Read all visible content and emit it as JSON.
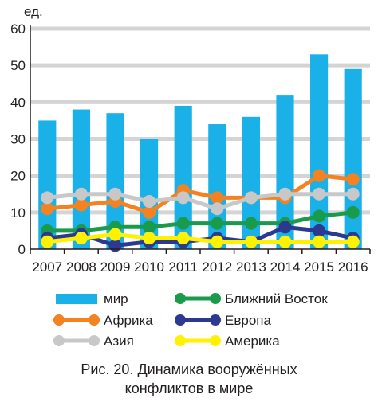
{
  "chart_data": {
    "type": "bar+line",
    "ylabel": "ед.",
    "ylim": [
      0,
      60
    ],
    "yticks": [
      0,
      10,
      20,
      30,
      40,
      50,
      60
    ],
    "categories": [
      "2007",
      "2008",
      "2009",
      "2010",
      "2011",
      "2012",
      "2013",
      "2014",
      "2015",
      "2016"
    ],
    "bar_series": {
      "name": "мир",
      "color": "#1ab0e8",
      "values": [
        35,
        38,
        37,
        30,
        39,
        34,
        36,
        42,
        53,
        49
      ]
    },
    "series": [
      {
        "name": "Африка",
        "color": "#f58220",
        "values": [
          11,
          12,
          13,
          10,
          16,
          14,
          14,
          14,
          20,
          19
        ]
      },
      {
        "name": "Азия",
        "color": "#c8c8c8",
        "values": [
          14,
          15,
          15,
          13,
          14,
          11,
          14,
          15,
          15,
          15
        ]
      },
      {
        "name": "Ближний Восток",
        "color": "#1a9b4b",
        "values": [
          5,
          5,
          6,
          6,
          7,
          7,
          7,
          7,
          9,
          10
        ]
      },
      {
        "name": "Европа",
        "color": "#2b3990",
        "values": [
          3,
          4,
          1,
          2,
          2,
          3,
          2,
          6,
          5,
          3
        ]
      },
      {
        "name": "Америка",
        "color": "#fff200",
        "values": [
          2,
          3,
          4,
          3,
          3,
          2,
          2,
          2,
          2,
          2
        ]
      }
    ],
    "grid": true,
    "legend_position": "bottom"
  },
  "legend": {
    "items": [
      {
        "label": "мир",
        "kind": "bar",
        "color": "#1ab0e8"
      },
      {
        "label": "Африка",
        "kind": "line",
        "color": "#f58220"
      },
      {
        "label": "Азия",
        "kind": "line",
        "color": "#c8c8c8"
      },
      {
        "label": "Ближний Восток",
        "kind": "line",
        "color": "#1a9b4b"
      },
      {
        "label": "Европа",
        "kind": "line",
        "color": "#2b3990"
      },
      {
        "label": "Америка",
        "kind": "line",
        "color": "#fff200"
      }
    ]
  },
  "caption": {
    "line1": "Рис. 20. Динамика вооружённых",
    "line2": "конфликтов в мире"
  }
}
